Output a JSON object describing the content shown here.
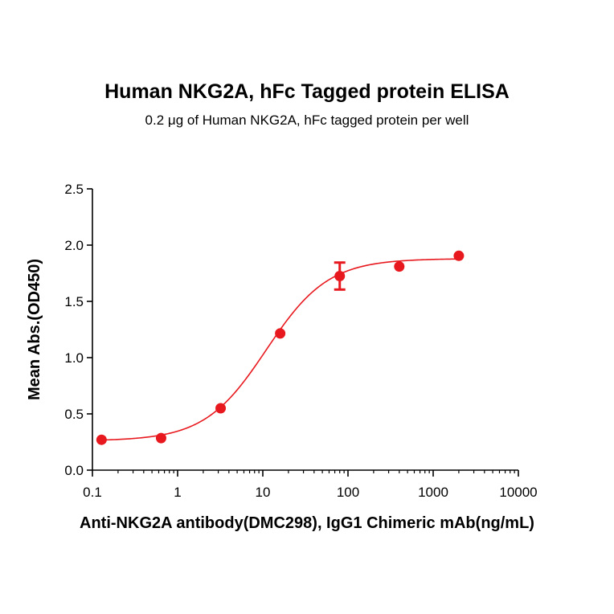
{
  "chart_data": {
    "type": "scatter",
    "title": "Human NKG2A, hFc Tagged protein ELISA",
    "subtitle": "0.2 μg of Human NKG2A, hFc tagged protein per well",
    "xlabel": "Anti-NKG2A antibody(DMC298), IgG1 Chimeric mAb(ng/mL)",
    "ylabel": "Mean Abs.(OD450)",
    "xscale": "log",
    "xlim": [
      0.1,
      10000
    ],
    "ylim": [
      0,
      2.5
    ],
    "x_ticks": [
      0.1,
      1,
      10,
      100,
      1000,
      10000
    ],
    "x_tick_labels": [
      "0.1",
      "1",
      "10",
      "100",
      "1000",
      "10000"
    ],
    "y_ticks": [
      0,
      0.5,
      1,
      1.5,
      2,
      2.5
    ],
    "y_tick_labels": [
      "0.0",
      "0.5",
      "1.0",
      "1.5",
      "2.0",
      "2.5"
    ],
    "grid": false,
    "color": "#e8191e",
    "series": [
      {
        "x": [
          0.128,
          0.64,
          3.2,
          16,
          80,
          400,
          2000
        ],
        "y": [
          0.27,
          0.285,
          0.55,
          1.215,
          1.725,
          1.81,
          1.905
        ],
        "error": [
          0,
          0,
          0,
          0,
          0.12,
          0,
          0
        ]
      }
    ],
    "fit": {
      "model": "4PL",
      "bottom": 0.26,
      "top": 1.88,
      "ec50": 11,
      "hill": 1.2
    }
  }
}
